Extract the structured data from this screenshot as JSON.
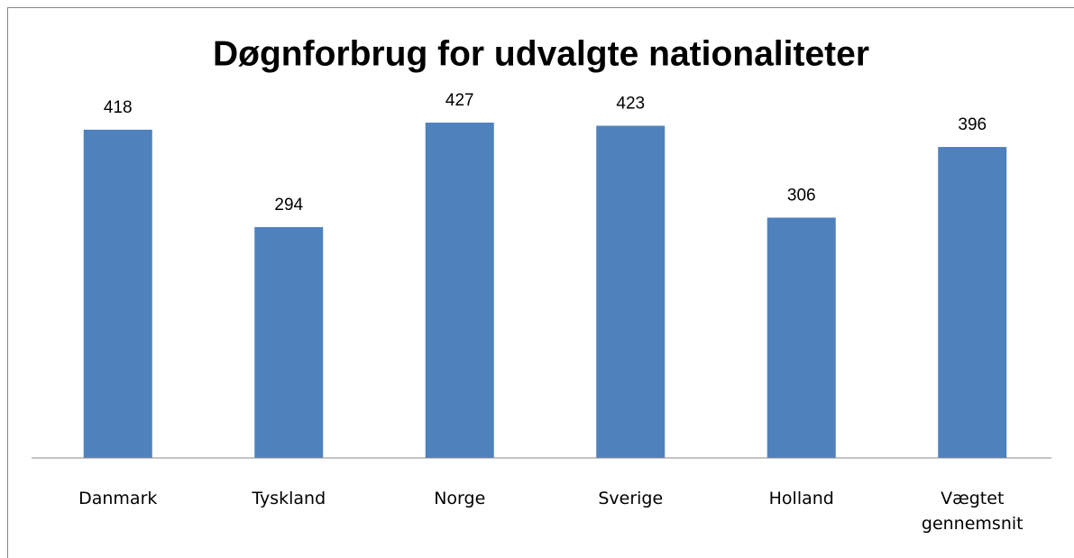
{
  "chart_data": {
    "type": "bar",
    "title": "Døgnforbrug for udvalgte nationaliteter",
    "categories": [
      "Danmark",
      "Tyskland",
      "Norge",
      "Sverige",
      "Holland",
      "Vægtet gennemsnit"
    ],
    "values": [
      418,
      294,
      427,
      423,
      306,
      396
    ],
    "color": "#4f81bd",
    "ylim": [
      0,
      450
    ]
  }
}
